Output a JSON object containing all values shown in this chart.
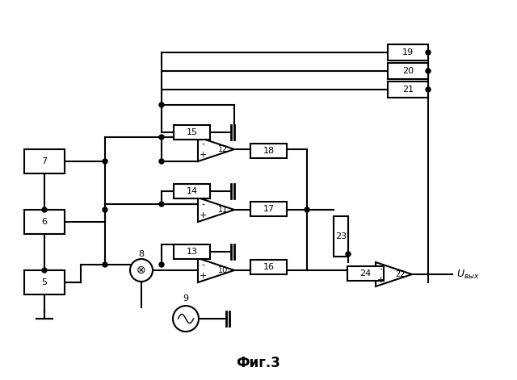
{
  "title": "Фиг.3",
  "bg_color": "#ffffff",
  "line_color": "#000000",
  "fig_width": 6.4,
  "fig_height": 4.71
}
